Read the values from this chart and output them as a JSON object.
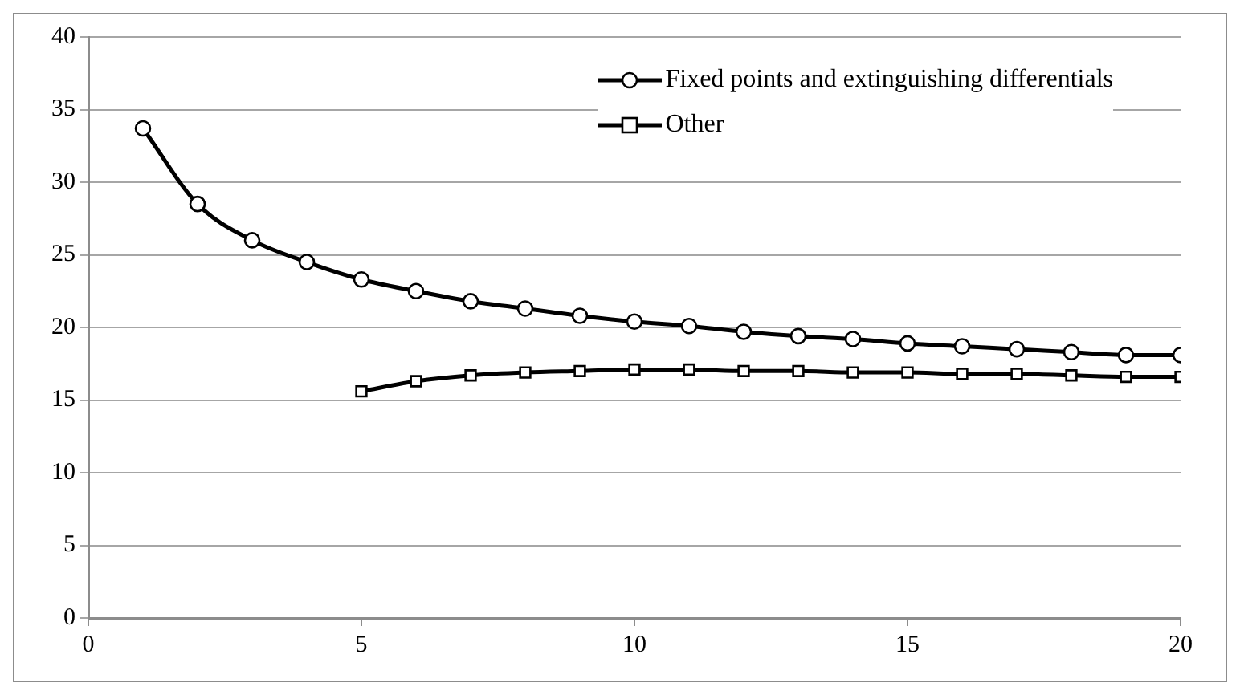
{
  "chart_data": {
    "type": "line",
    "x": [
      1,
      2,
      3,
      4,
      5,
      6,
      7,
      8,
      9,
      10,
      11,
      12,
      13,
      14,
      15,
      16,
      17,
      18,
      19,
      20
    ],
    "series": [
      {
        "name": "Fixed points and extinguishing differentials",
        "color": "#000000",
        "marker": "circle",
        "values": [
          33.7,
          28.5,
          26.0,
          24.5,
          23.3,
          22.5,
          21.8,
          21.3,
          20.8,
          20.4,
          20.1,
          19.7,
          19.4,
          19.2,
          18.9,
          18.7,
          18.5,
          18.3,
          18.1,
          18.1
        ]
      },
      {
        "name": "Other",
        "color": "#000000",
        "marker": "square",
        "values": [
          null,
          null,
          null,
          null,
          15.6,
          16.3,
          16.7,
          16.9,
          17.0,
          17.1,
          17.1,
          17.0,
          17.0,
          16.9,
          16.9,
          16.8,
          16.8,
          16.7,
          16.6,
          16.6
        ]
      }
    ],
    "xlim": [
      0,
      20
    ],
    "xticks": [
      0,
      5,
      10,
      15,
      20
    ],
    "ylim": [
      0,
      40
    ],
    "yticks": [
      0,
      5,
      10,
      15,
      20,
      25,
      30,
      35,
      40
    ],
    "grid": "y",
    "legend": "top right"
  }
}
